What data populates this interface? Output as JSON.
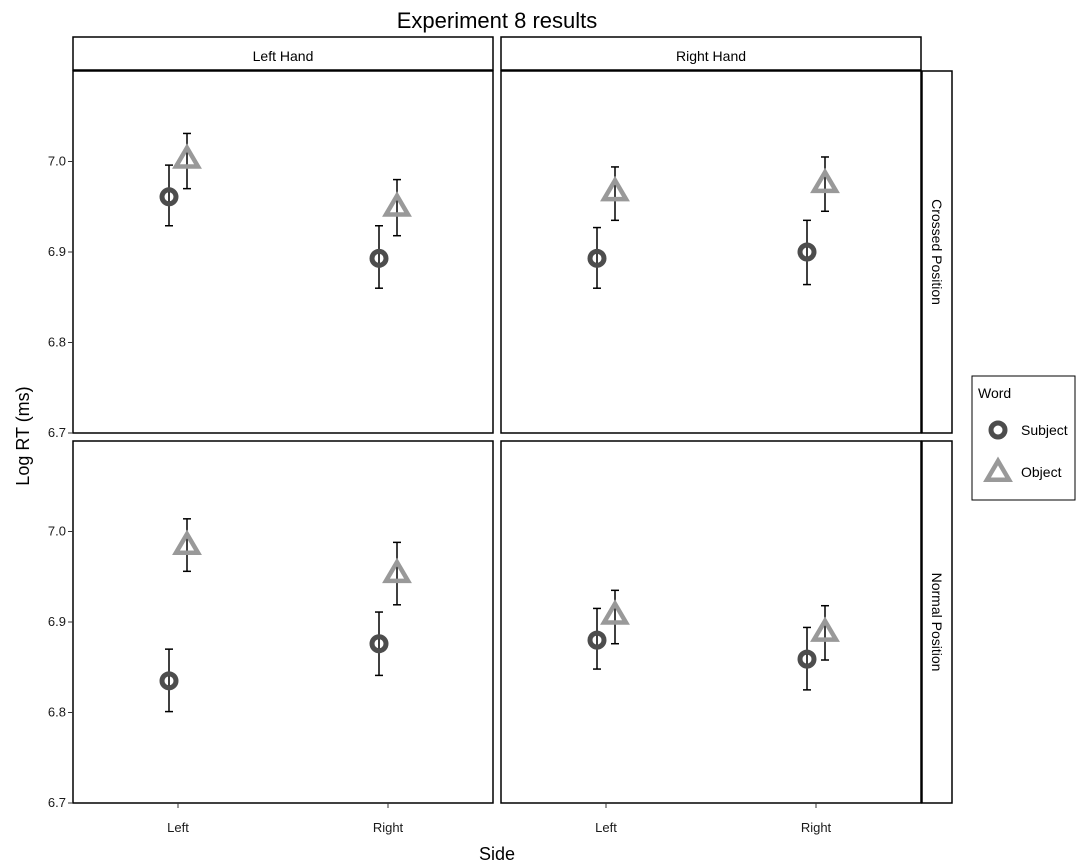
{
  "chart_data": {
    "type": "scatter",
    "title": "Experiment 8 results",
    "xlabel": "Side",
    "ylabel": "Log RT (ms)",
    "categories": [
      "Left",
      "Right"
    ],
    "ylim": [
      6.7,
      7.1
    ],
    "yticks": [
      "6.7",
      "6.8",
      "6.9",
      "7.0"
    ],
    "ytick_values": [
      6.7,
      6.8,
      6.9,
      7.0
    ],
    "grid": false,
    "legend": {
      "title": "Word",
      "placement": "right",
      "entries": [
        "Subject",
        "Object"
      ]
    },
    "colors": {
      "Subject": "#4d4d4d",
      "Object": "#999999"
    },
    "markers": {
      "Subject": "circle-ring",
      "Object": "triangle"
    },
    "col_facets": [
      "Left Hand",
      "Right Hand"
    ],
    "row_facets": [
      "Crossed Position",
      "Normal Position"
    ],
    "panels": [
      {
        "column": "Left Hand",
        "row": "Crossed Position",
        "series": [
          {
            "name": "Subject",
            "values": [
              6.961,
              6.893
            ],
            "lower": [
              6.929,
              6.86
            ],
            "upper": [
              6.996,
              6.929
            ]
          },
          {
            "name": "Object",
            "values": [
              7.003,
              6.95
            ],
            "lower": [
              6.97,
              6.918
            ],
            "upper": [
              7.031,
              6.98
            ]
          }
        ]
      },
      {
        "column": "Right Hand",
        "row": "Crossed Position",
        "series": [
          {
            "name": "Subject",
            "values": [
              6.893,
              6.9
            ],
            "lower": [
              6.86,
              6.864
            ],
            "upper": [
              6.927,
              6.935
            ]
          },
          {
            "name": "Object",
            "values": [
              6.967,
              6.976
            ],
            "lower": [
              6.935,
              6.945
            ],
            "upper": [
              6.994,
              7.005
            ]
          }
        ]
      },
      {
        "column": "Left Hand",
        "row": "Normal Position",
        "series": [
          {
            "name": "Subject",
            "values": [
              6.835,
              6.876
            ],
            "lower": [
              6.801,
              6.841
            ],
            "upper": [
              6.87,
              6.911
            ]
          },
          {
            "name": "Object",
            "values": [
              6.985,
              6.954
            ],
            "lower": [
              6.956,
              6.919
            ],
            "upper": [
              7.014,
              6.988
            ]
          }
        ]
      },
      {
        "column": "Right Hand",
        "row": "Normal Position",
        "series": [
          {
            "name": "Subject",
            "values": [
              6.88,
              6.859
            ],
            "lower": [
              6.848,
              6.825
            ],
            "upper": [
              6.915,
              6.894
            ]
          },
          {
            "name": "Object",
            "values": [
              6.908,
              6.889
            ],
            "lower": [
              6.876,
              6.858
            ],
            "upper": [
              6.935,
              6.918
            ]
          }
        ]
      }
    ]
  }
}
